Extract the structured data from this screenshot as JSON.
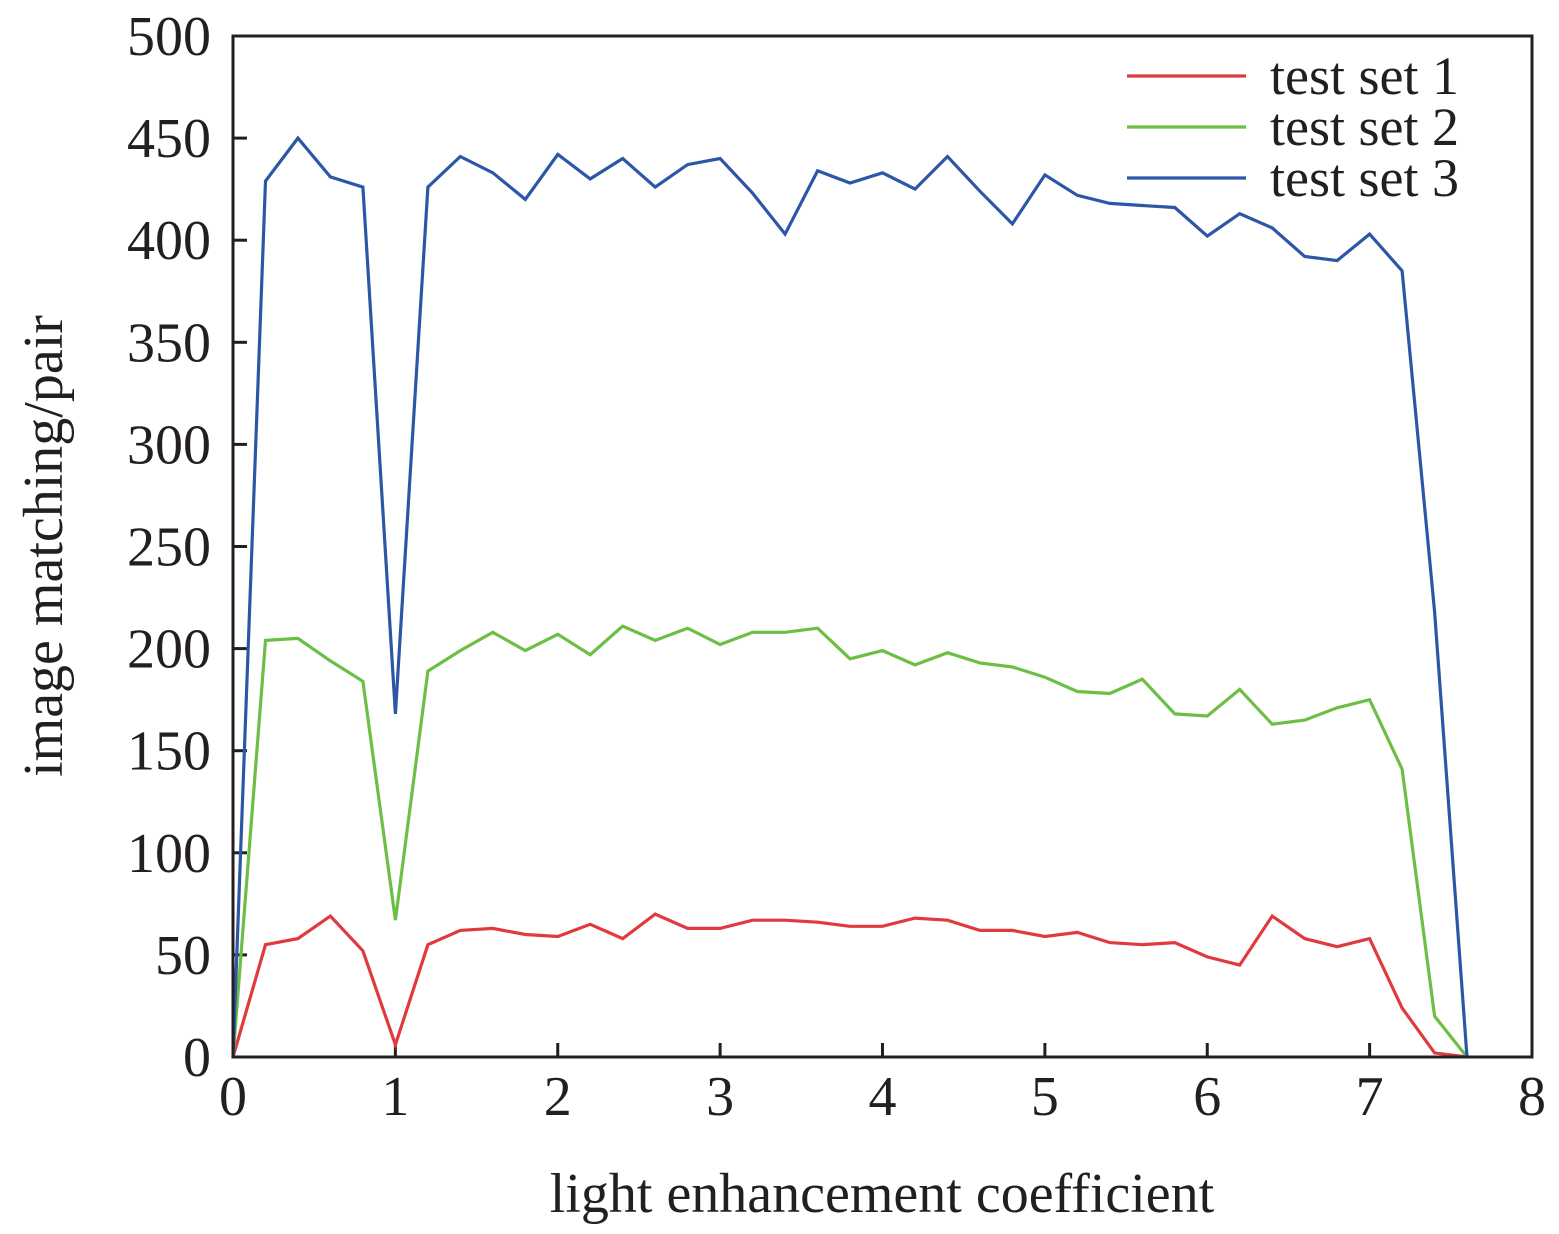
{
  "chart_data": {
    "type": "line",
    "title": "",
    "xlabel": "light enhancement coefficient",
    "ylabel": "image matching/pair",
    "xlim": [
      0,
      8
    ],
    "ylim": [
      0,
      500
    ],
    "x_ticks": [
      "0",
      "1",
      "2",
      "3",
      "4",
      "5",
      "6",
      "7",
      "8"
    ],
    "y_ticks": [
      "0",
      "50",
      "100",
      "150",
      "200",
      "250",
      "300",
      "350",
      "400",
      "450",
      "500"
    ],
    "legend_position": "top-right",
    "grid": false,
    "x": [
      0,
      0.2,
      0.4,
      0.6,
      0.8,
      1.0,
      1.2,
      1.4,
      1.6,
      1.8,
      2.0,
      2.2,
      2.4,
      2.6,
      2.8,
      3.0,
      3.2,
      3.4,
      3.6,
      3.8,
      4.0,
      4.2,
      4.4,
      4.6,
      4.8,
      5.0,
      5.2,
      5.4,
      5.6,
      5.8,
      6.0,
      6.2,
      6.4,
      6.6,
      6.8,
      7.0,
      7.2,
      7.4,
      7.6
    ],
    "series": [
      {
        "name": "test set 1",
        "color": "#e03a3e",
        "values": [
          0,
          55,
          58,
          69,
          52,
          6,
          55,
          62,
          63,
          60,
          59,
          65,
          58,
          70,
          63,
          63,
          67,
          67,
          66,
          64,
          64,
          68,
          67,
          62,
          62,
          59,
          61,
          56,
          55,
          56,
          49,
          45,
          69,
          58,
          54,
          58,
          24,
          2,
          0
        ]
      },
      {
        "name": "test set 2",
        "color": "#6cbe45",
        "values": [
          0,
          204,
          205,
          194,
          184,
          67,
          189,
          199,
          208,
          199,
          207,
          197,
          211,
          204,
          210,
          202,
          208,
          208,
          210,
          195,
          199,
          192,
          198,
          193,
          191,
          186,
          179,
          178,
          185,
          168,
          167,
          180,
          163,
          165,
          171,
          175,
          141,
          20,
          0
        ]
      },
      {
        "name": "test set 3",
        "color": "#2b57a6",
        "values": [
          0,
          429,
          450,
          431,
          426,
          168,
          426,
          441,
          433,
          420,
          442,
          430,
          440,
          426,
          437,
          440,
          423,
          403,
          434,
          428,
          433,
          425,
          441,
          424,
          408,
          432,
          422,
          418,
          417,
          416,
          402,
          413,
          406,
          392,
          390,
          403,
          385,
          218,
          0
        ]
      }
    ]
  }
}
